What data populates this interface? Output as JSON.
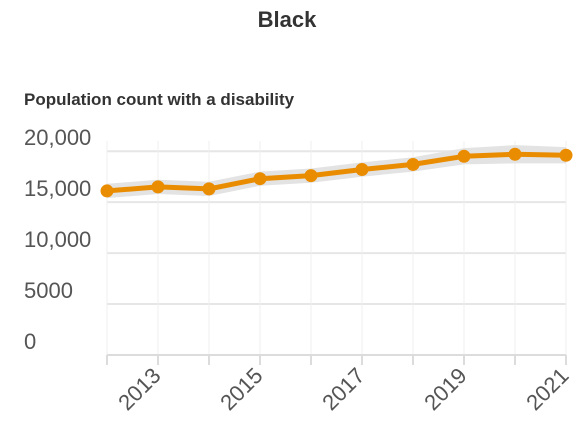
{
  "chart_data": {
    "type": "line",
    "title": "Black",
    "subtitle": "Population count with a disability",
    "xlabel": "",
    "ylabel": "",
    "x": [
      2012,
      2013,
      2014,
      2015,
      2016,
      2017,
      2018,
      2019,
      2020,
      2021
    ],
    "series": [
      {
        "values": [
          16100,
          16500,
          16300,
          17300,
          17600,
          18200,
          18700,
          19500,
          19700,
          19600
        ],
        "lower": [
          15400,
          15800,
          15600,
          16600,
          16900,
          17500,
          18000,
          18700,
          18800,
          18800
        ],
        "upper": [
          16800,
          17200,
          17000,
          18000,
          18300,
          18900,
          19400,
          20300,
          20600,
          20400
        ],
        "color": "#ea8c00",
        "band_color": "#e3e3e3"
      }
    ],
    "ylim": [
      0,
      21000
    ],
    "y_ticks": [
      0,
      5000,
      10000,
      15000,
      20000
    ],
    "y_tick_labels": [
      "0",
      "5000",
      "10,000",
      "15,000",
      "20,000"
    ],
    "x_ticks": [
      2013,
      2015,
      2017,
      2019,
      2021
    ],
    "x_tick_labels": [
      "2013",
      "2015",
      "2017",
      "2019",
      "2021"
    ],
    "grid": true,
    "legend": "none"
  }
}
